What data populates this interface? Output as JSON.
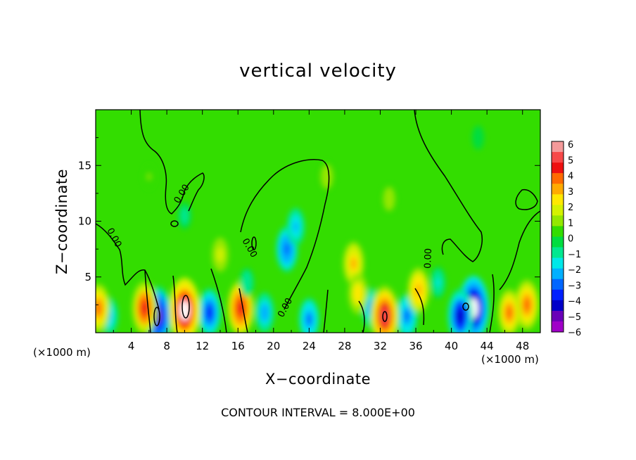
{
  "chart_data": {
    "type": "heatmap",
    "title": "vertical velocity",
    "xlabel": "X−coordinate",
    "ylabel": "Z−coordinate",
    "x_unit": "(×1000 m)",
    "footer": "CONTOUR INTERVAL = 8.000E+00",
    "xlim": [
      0,
      50
    ],
    "ylim": [
      0,
      20
    ],
    "xticks": [
      "4",
      "8",
      "12",
      "16",
      "20",
      "24",
      "28",
      "32",
      "36",
      "40",
      "44",
      "48"
    ],
    "yticks": [
      "5",
      "10",
      "15"
    ],
    "contour_labels": [
      "0.00",
      "0.00",
      "0.00",
      "0.00",
      "0.00"
    ],
    "colorbar": {
      "labels": [
        "6",
        "5",
        "4",
        "3",
        "2",
        "1",
        "0",
        "−1",
        "−2",
        "−3",
        "−4",
        "−5",
        "−6"
      ],
      "colors": [
        "#f49a9a",
        "#f74848",
        "#ee1010",
        "#ff6a00",
        "#ffaa00",
        "#ffe800",
        "#d4f200",
        "#94e800",
        "#33dd00",
        "#00dd40",
        "#00e890",
        "#00e8e8",
        "#00b0ff",
        "#0066ff",
        "#0020ff",
        "#0000c8",
        "#6a00b8",
        "#a000c8"
      ]
    },
    "features": [
      {
        "x": 21.5,
        "z": 7.5,
        "w": -3.2
      },
      {
        "x": 22.5,
        "z": 9.5,
        "w": -2.2
      },
      {
        "x": 42.5,
        "z": 2.2,
        "w": -5.5
      },
      {
        "x": 41.0,
        "z": 1.5,
        "w": -4.2
      },
      {
        "x": 7.0,
        "z": 1.5,
        "w": -4.8
      },
      {
        "x": 12.8,
        "z": 1.8,
        "w": -3.5
      },
      {
        "x": 19.0,
        "z": 1.8,
        "w": -2.5
      },
      {
        "x": 24.0,
        "z": 1.2,
        "w": -2.8
      },
      {
        "x": 31.0,
        "z": 2.2,
        "w": -2.5
      },
      {
        "x": 35.0,
        "z": 1.5,
        "w": -3.0
      },
      {
        "x": 1.5,
        "z": 1.5,
        "w": -2.2
      },
      {
        "x": 10.0,
        "z": 2.0,
        "w": 5.6
      },
      {
        "x": 5.5,
        "z": 2.2,
        "w": 4.2
      },
      {
        "x": 16.3,
        "z": 2.2,
        "w": 4.5
      },
      {
        "x": 32.5,
        "z": 1.5,
        "w": 5.0
      },
      {
        "x": 36.3,
        "z": 3.8,
        "w": 3.2
      },
      {
        "x": 29.0,
        "z": 6.2,
        "w": 3.0
      },
      {
        "x": 29.5,
        "z": 3.5,
        "w": 2.6
      },
      {
        "x": 48.5,
        "z": 2.5,
        "w": 3.8
      },
      {
        "x": 46.5,
        "z": 1.8,
        "w": 3.4
      },
      {
        "x": 0.3,
        "z": 2.2,
        "w": 3.6
      },
      {
        "x": 14.0,
        "z": 7.0,
        "w": 1.8
      },
      {
        "x": 17.0,
        "z": 4.5,
        "w": -1.2
      },
      {
        "x": 38.5,
        "z": 4.5,
        "w": -1.5
      },
      {
        "x": 26.0,
        "z": 14.0,
        "w": 1.2
      },
      {
        "x": 33.0,
        "z": 12.0,
        "w": 1.1
      },
      {
        "x": 10.0,
        "z": 10.5,
        "w": -1.0
      },
      {
        "x": 43.0,
        "z": 17.5,
        "w": -0.6
      },
      {
        "x": 6.0,
        "z": 14.0,
        "w": 0.7
      }
    ]
  }
}
